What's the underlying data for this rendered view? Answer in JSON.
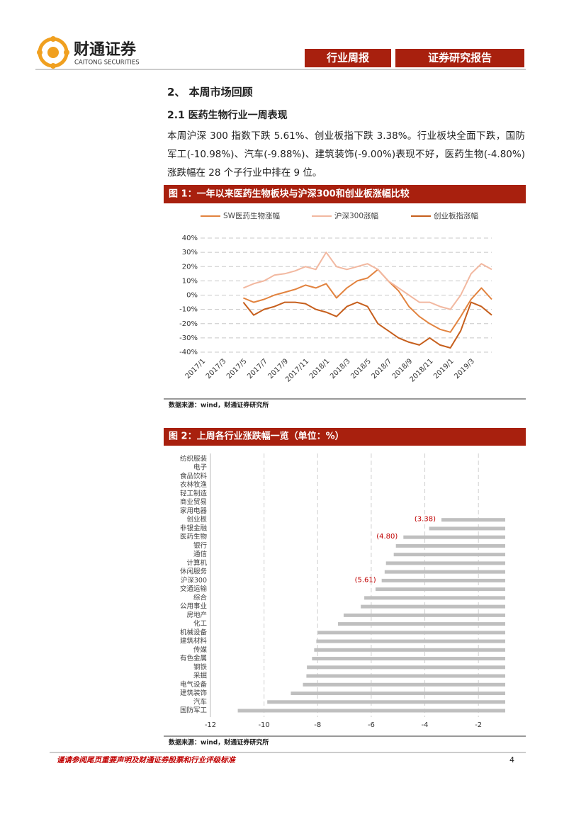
{
  "header": {
    "brand": "财通证券",
    "brand_en": "CAITONG SECURITIES",
    "tags": [
      "行业周报",
      "证券研究报告"
    ]
  },
  "section": {
    "heading": "2、 本周市场回顾",
    "subheading": "2.1 医药生物行业一周表现",
    "paragraph": "本周沪深 300 指数下跌 5.61%、创业板指下跌 3.38%。行业板块全面下跌，国防军工(-10.98%)、汽车(-9.88%)、建筑装饰(-9.00%)表现不好，医药生物(-4.80%)涨跌幅在 28 个子行业中排在 9 位。"
  },
  "chart_data": [
    {
      "type": "line",
      "title": "图 1：一年以来医药生物板块与沪深300和创业板涨幅比较",
      "source": "数据来源：wind，财通证券研究所",
      "categories": [
        "2017/1",
        null,
        "2017/3",
        null,
        "2017/5",
        null,
        "2017/7",
        null,
        "2017/9",
        null,
        "2017/11",
        null,
        "2018/1",
        null,
        "2018/3",
        null,
        "2018/5",
        null,
        "2018/7",
        null,
        "2018/9",
        null,
        "2018/11",
        null,
        "2019/1",
        null,
        "2019/3",
        null,
        null
      ],
      "series": [
        {
          "name": "SW医药生物涨幅",
          "color": "#e2833f",
          "values": [
            null,
            null,
            null,
            null,
            -2,
            -5,
            -3,
            0,
            2,
            4,
            7,
            5,
            8,
            -2,
            5,
            10,
            12,
            18,
            10,
            3,
            -8,
            -15,
            -20,
            -24,
            -26,
            -15,
            -3,
            5,
            -3
          ]
        },
        {
          "name": "沪深300涨幅",
          "color": "#f2b8a0",
          "values": [
            null,
            null,
            null,
            null,
            5,
            8,
            10,
            14,
            15,
            17,
            20,
            18,
            30,
            20,
            18,
            20,
            22,
            18,
            10,
            5,
            0,
            -5,
            -5,
            -8,
            -10,
            0,
            15,
            22,
            18
          ]
        },
        {
          "name": "创业板指涨幅",
          "color": "#c65f1d",
          "values": [
            null,
            null,
            null,
            null,
            -5,
            -14,
            -10,
            -8,
            -5,
            -5,
            -6,
            -10,
            -12,
            -15,
            -8,
            -5,
            -8,
            -20,
            -25,
            -30,
            -33,
            -35,
            -30,
            -35,
            -37,
            -25,
            -5,
            -8,
            -14
          ]
        }
      ],
      "ylim": [
        -40,
        40
      ],
      "yticks": [
        {
          "value": -40,
          "label": "-40%"
        },
        {
          "value": -30,
          "label": "-30%"
        },
        {
          "value": -20,
          "label": "-20%"
        },
        {
          "value": -10,
          "label": "-10%"
        },
        {
          "value": 0,
          "label": "0%"
        },
        {
          "value": 10,
          "label": "10%"
        },
        {
          "value": 20,
          "label": "20%"
        },
        {
          "value": 30,
          "label": "30%"
        },
        {
          "value": 40,
          "label": "40%"
        }
      ],
      "grid": true
    },
    {
      "type": "hbar",
      "title": "图 2：上周各行业涨跌幅一览（单位：%）",
      "source": "数据来源：wind，财通证券研究所",
      "categories": [
        "纺织服装",
        "电子",
        "食品饮料",
        "农林牧渔",
        "轻工制造",
        "商业贸易",
        "家用电器",
        "创业板",
        "非银金融",
        "医药生物",
        "银行",
        "通信",
        "计算机",
        "休闲服务",
        "沪深300",
        "交通运输",
        "综合",
        "公用事业",
        "房地产",
        "化工",
        "机械设备",
        "建筑材料",
        "传媒",
        "有色金属",
        "钢铁",
        "采掘",
        "电气设备",
        "建筑装饰",
        "汽车",
        "国防军工"
      ],
      "values": [
        null,
        null,
        null,
        null,
        null,
        null,
        null,
        -3.38,
        -3.84,
        -4.8,
        -5.08,
        -5.16,
        -5.45,
        -5.5,
        -5.61,
        -5.84,
        -6.26,
        -6.39,
        -7.03,
        -7.24,
        -8.0,
        -8.05,
        -8.13,
        -8.21,
        -8.4,
        -8.42,
        -8.55,
        -9.0,
        -9.88,
        -10.98
      ],
      "value_labels": [
        null,
        null,
        null,
        null,
        null,
        null,
        null,
        "(3.38)",
        null,
        "(4.80)",
        null,
        null,
        null,
        null,
        "(5.61)",
        null,
        null,
        null,
        null,
        null,
        null,
        null,
        null,
        null,
        null,
        null,
        null,
        null,
        null,
        null
      ],
      "color": "#bfbfbf",
      "xlim": [
        -12,
        -1
      ],
      "xticks": [
        -12,
        -10,
        -8,
        -6,
        -4,
        -2
      ],
      "grid": true
    }
  ],
  "footer": {
    "disclaimer": "谨请参阅尾页重要声明及财通证券股票和行业评级标准",
    "page": 4
  }
}
